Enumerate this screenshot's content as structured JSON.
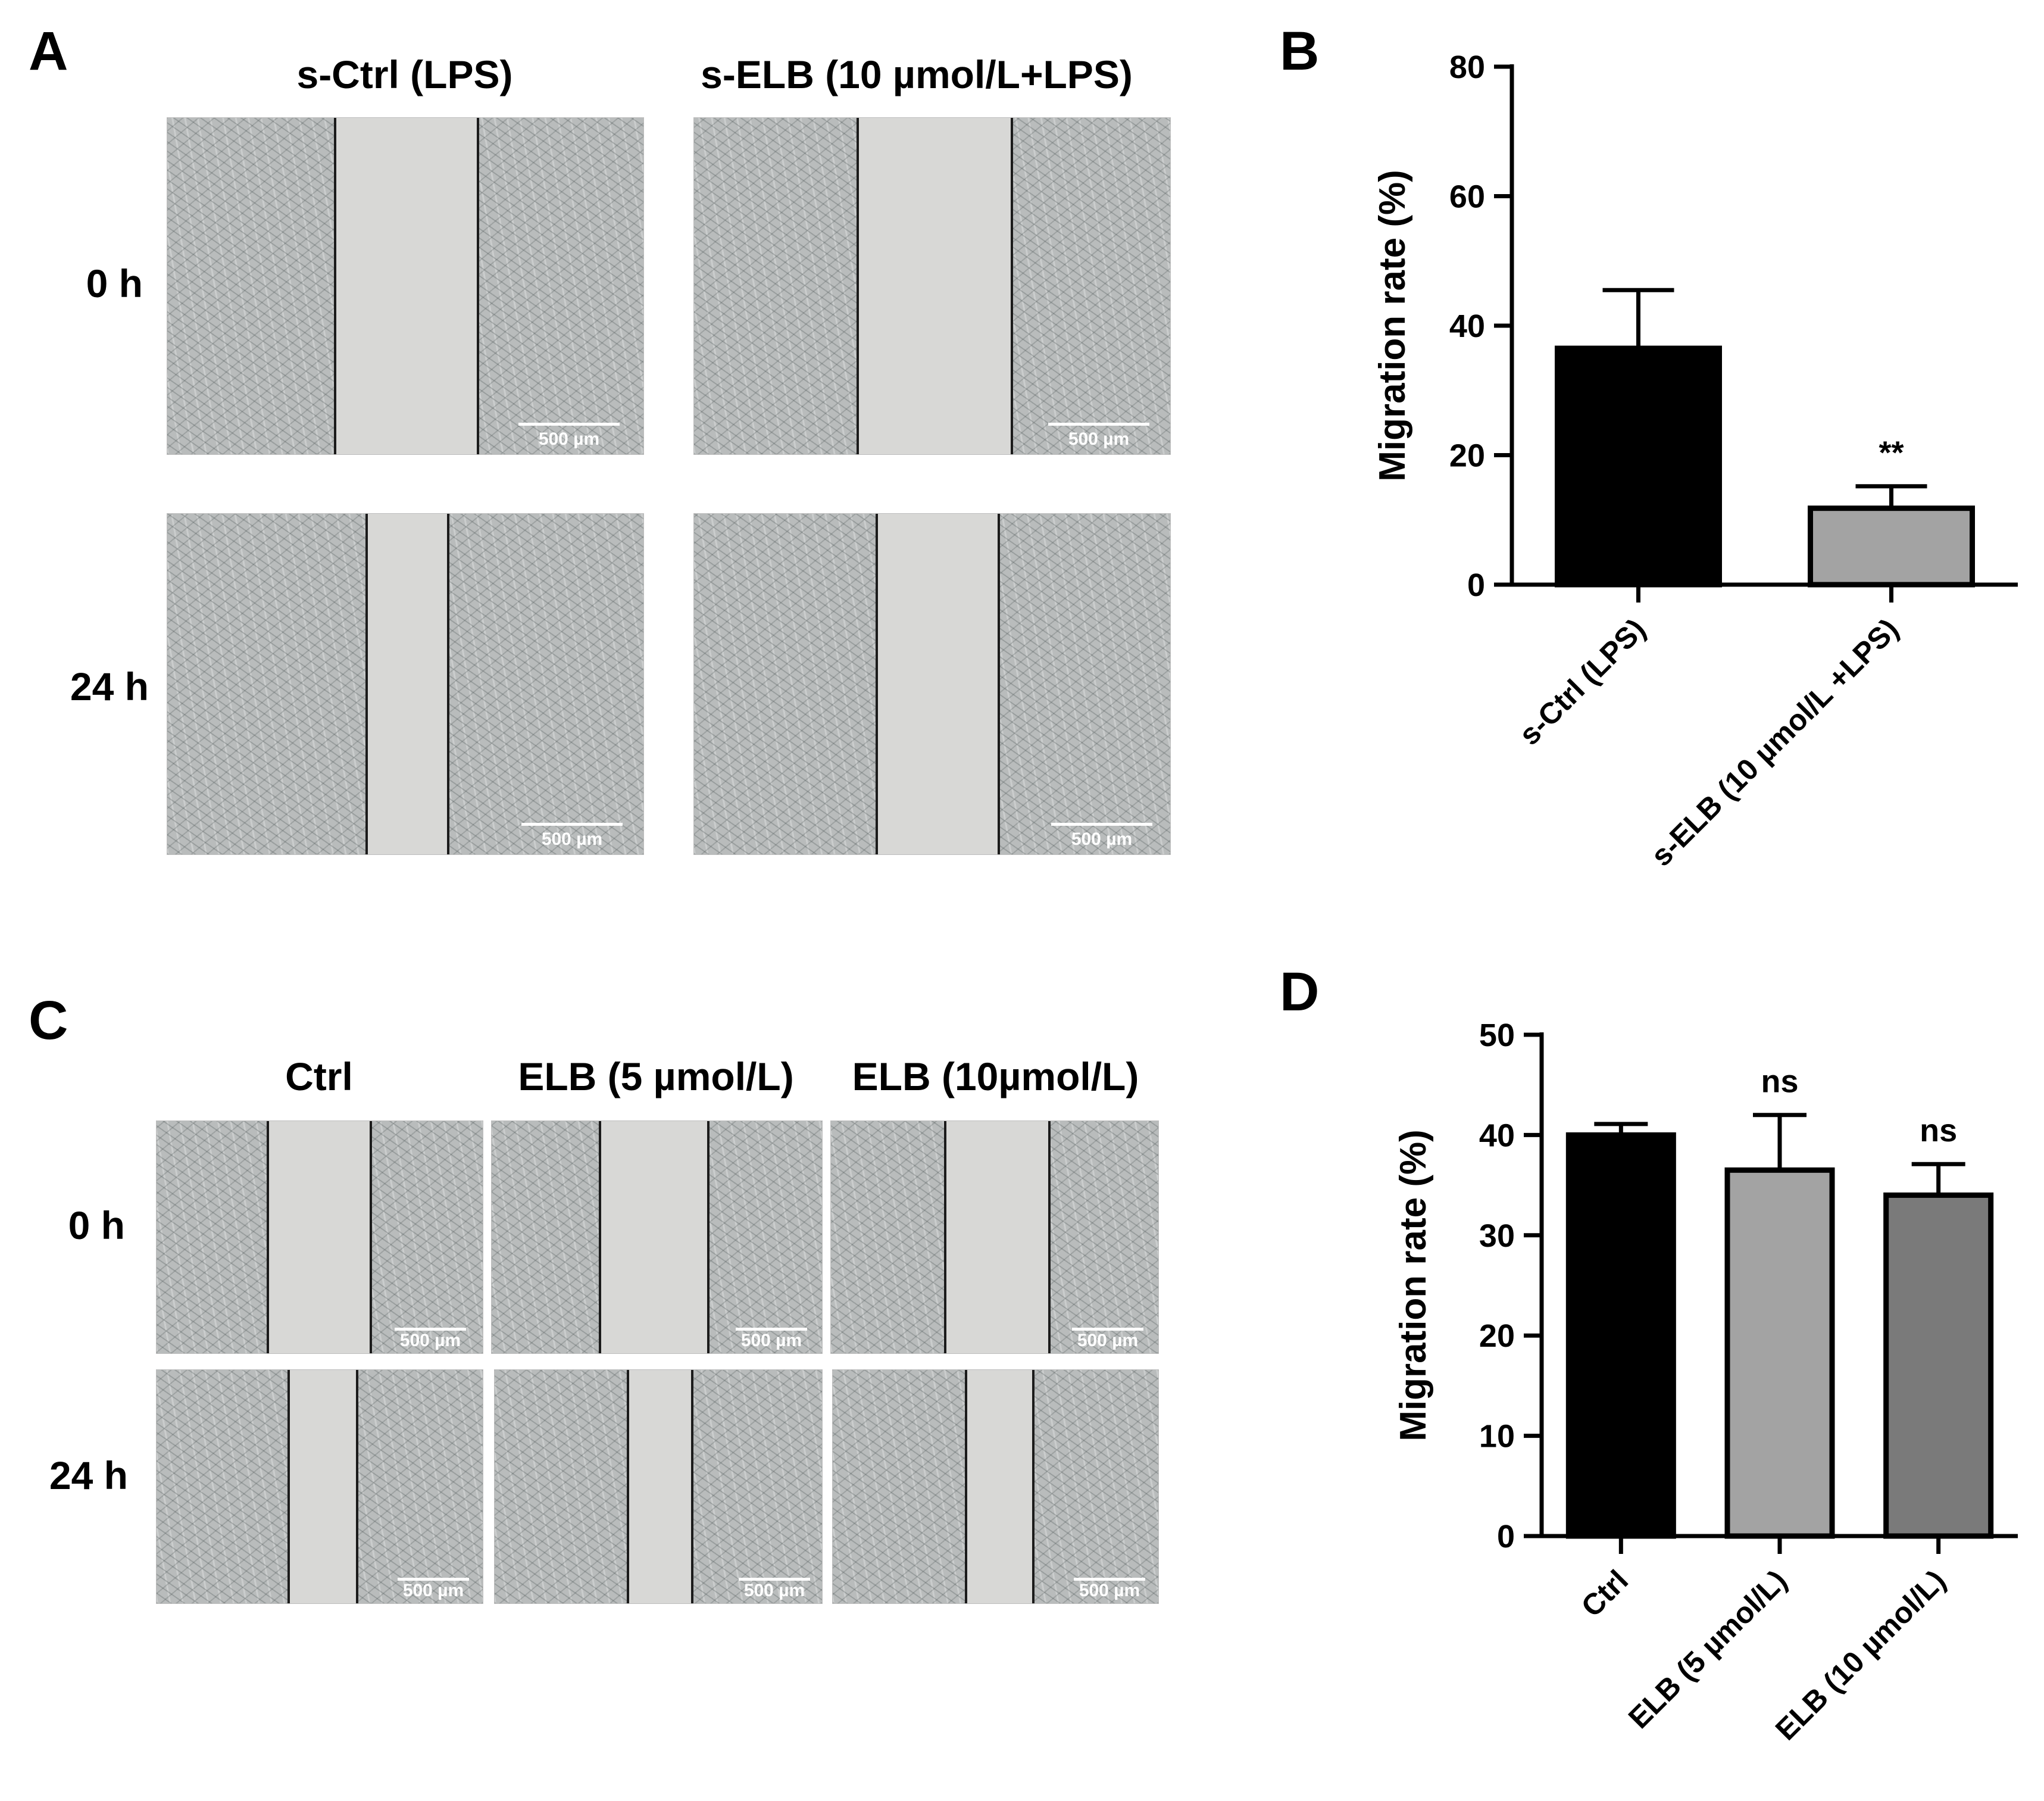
{
  "panels": {
    "A": {
      "letter": "A",
      "columns": [
        "s-Ctrl (LPS)",
        "s-ELB (10 µmol/L+LPS)"
      ],
      "rows": [
        "0 h",
        "24 h"
      ],
      "scale_bar": "500 µm"
    },
    "C": {
      "letter": "C",
      "columns": [
        "Ctrl",
        "ELB (5 µmol/L)",
        "ELB (10µmol/L)"
      ],
      "rows": [
        "0 h",
        "24 h"
      ],
      "scale_bar": "500 µm"
    }
  },
  "chart_data": [
    {
      "panel": "B",
      "type": "bar",
      "categories": [
        "s-Ctrl (LPS)",
        "s-ELB (10 µmol/L +LPS)"
      ],
      "values": [
        36.5,
        11.8
      ],
      "errors": [
        9,
        3.4
      ],
      "annotations": [
        "",
        "**"
      ],
      "colors": [
        "#000000",
        "#a3a3a3"
      ],
      "title": "",
      "xlabel": "",
      "ylabel": "Migration rate (%)",
      "ylim": [
        0,
        80
      ],
      "yticks": [
        0,
        20,
        40,
        60,
        80
      ],
      "grid": false,
      "legend": "none"
    },
    {
      "panel": "D",
      "type": "bar",
      "categories": [
        "Ctrl",
        "ELB (5 µmol/L)",
        "ELB (10 µmol/L)"
      ],
      "values": [
        40,
        36.5,
        34
      ],
      "errors": [
        1.1,
        5.5,
        3.1
      ],
      "annotations": [
        "",
        "ns",
        "ns"
      ],
      "colors": [
        "#000000",
        "#a3a3a3",
        "#7a7a7a"
      ],
      "title": "",
      "xlabel": "",
      "ylabel": "Migration rate (%)",
      "ylim": [
        0,
        50
      ],
      "yticks": [
        0,
        10,
        20,
        30,
        40,
        50
      ],
      "grid": false,
      "legend": "none"
    }
  ]
}
